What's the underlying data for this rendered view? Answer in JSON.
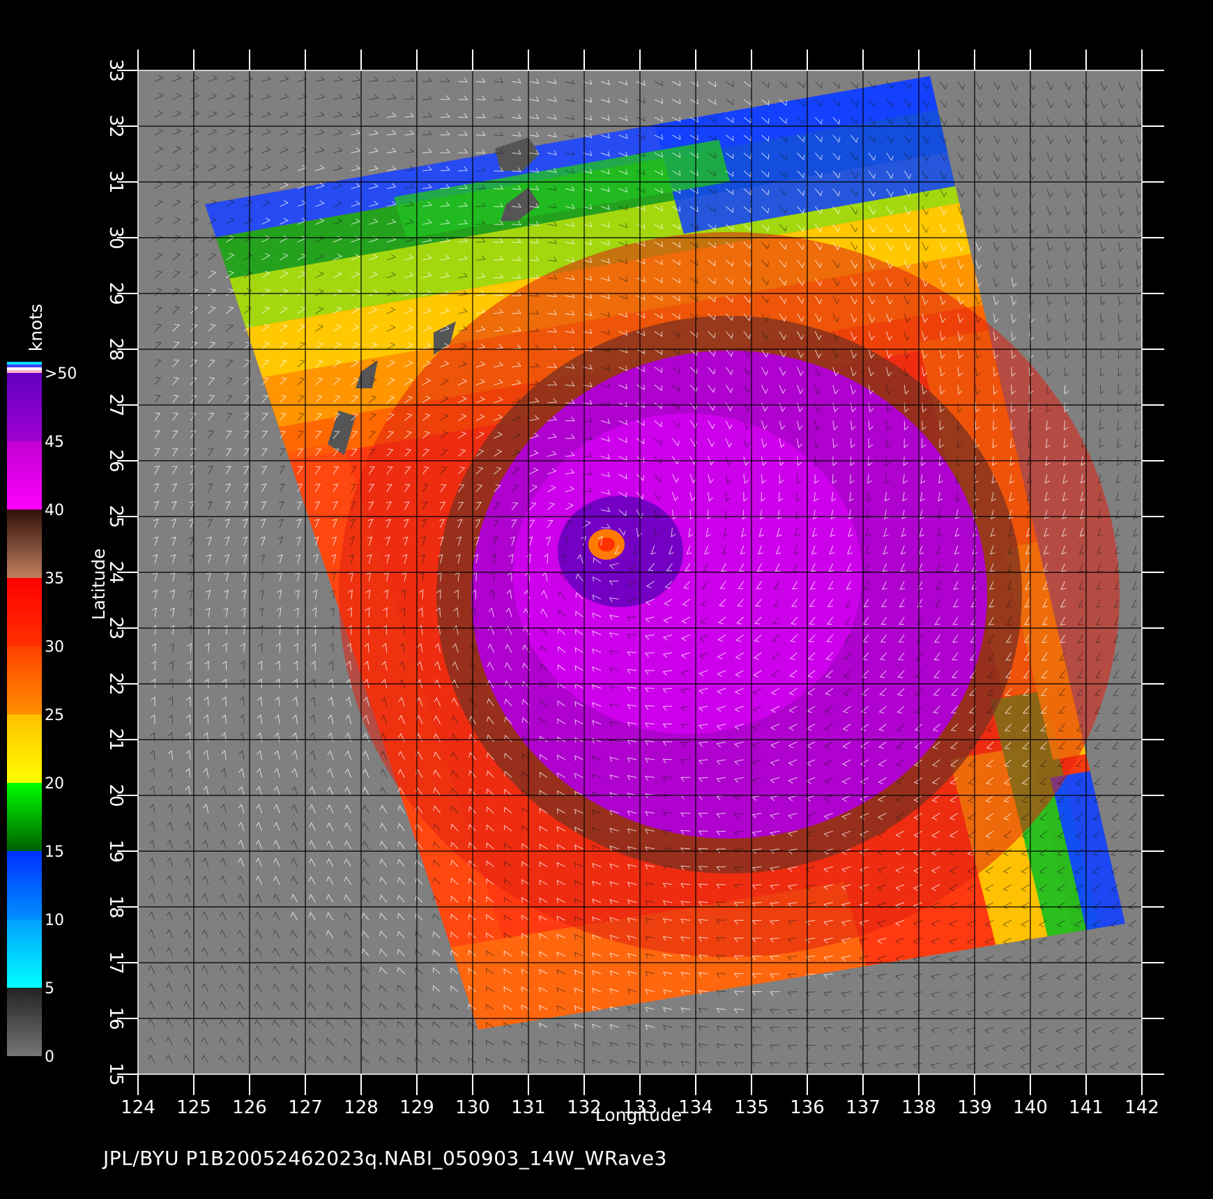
{
  "map": {
    "lon_range": [
      124,
      142
    ],
    "lat_range": [
      15,
      33
    ],
    "lon_ticks": [
      "124",
      "125",
      "126",
      "127",
      "128",
      "129",
      "130",
      "131",
      "132",
      "133",
      "134",
      "135",
      "136",
      "137",
      "138",
      "139",
      "140",
      "141",
      "142"
    ],
    "lat_ticks": [
      "15",
      "16",
      "17",
      "18",
      "19",
      "20",
      "21",
      "22",
      "23",
      "24",
      "25",
      "26",
      "27",
      "28",
      "29",
      "30",
      "31",
      "32",
      "33"
    ],
    "xlabel": "Longitude",
    "ylabel": "Latitude",
    "background_color": "#808080",
    "swath_corners_lonlat": [
      [
        125.2,
        30.6
      ],
      [
        138.2,
        32.9
      ],
      [
        141.7,
        17.7
      ],
      [
        130.1,
        15.8
      ]
    ],
    "storm_center_lonlat": [
      132.4,
      24.5
    ],
    "land_color": "#555555"
  },
  "colorbar": {
    "unit": "knots",
    "labels": [
      "0",
      "5",
      "10",
      "15",
      "20",
      "25",
      "30",
      "35",
      "40",
      "45",
      ">50"
    ],
    "bands": [
      {
        "from": 0,
        "to": 5,
        "colors": [
          "#777777",
          "#222222"
        ]
      },
      {
        "from": 5,
        "to": 10,
        "colors": [
          "#00ffff",
          "#00a0ff"
        ]
      },
      {
        "from": 10,
        "to": 15,
        "colors": [
          "#0090ff",
          "#0030ff"
        ]
      },
      {
        "from": 15,
        "to": 20,
        "colors": [
          "#006000",
          "#00ff00"
        ]
      },
      {
        "from": 20,
        "to": 25,
        "colors": [
          "#ffff00",
          "#ffc000"
        ]
      },
      {
        "from": 25,
        "to": 30,
        "colors": [
          "#ff9000",
          "#ff4000"
        ]
      },
      {
        "from": 30,
        "to": 35,
        "colors": [
          "#ff3000",
          "#ff0000"
        ]
      },
      {
        "from": 35,
        "to": 40,
        "colors": [
          "#c08060",
          "#301008"
        ]
      },
      {
        "from": 40,
        "to": 45,
        "colors": [
          "#ff00ff",
          "#c000d0"
        ]
      },
      {
        "from": 45,
        "to": 50,
        "colors": [
          "#a000d0",
          "#6000c0"
        ]
      }
    ]
  },
  "footer": {
    "caption": "JPL/BYU  P1B20052462023q.NABI_050903_14W_WRave3"
  }
}
